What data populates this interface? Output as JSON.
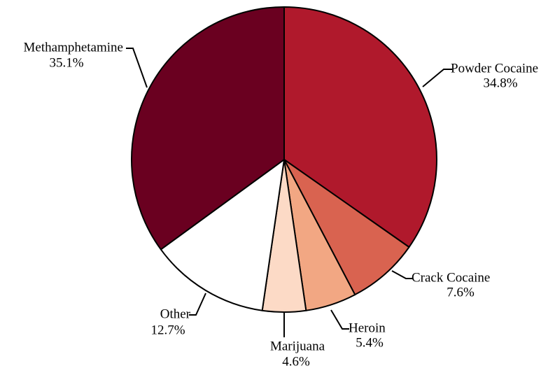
{
  "chart_data": {
    "type": "pie",
    "title": "",
    "start_angle_deg": 0,
    "direction": "clockwise",
    "legend": "none",
    "slices": [
      {
        "label": "Powder Cocaine",
        "value": 34.8,
        "value_label": "34.8%",
        "color": "#B0192C"
      },
      {
        "label": "Crack Cocaine",
        "value": 7.6,
        "value_label": "7.6%",
        "color": "#D96350"
      },
      {
        "label": "Heroin",
        "value": 5.4,
        "value_label": "5.4%",
        "color": "#F2A783"
      },
      {
        "label": "Marijuana",
        "value": 4.6,
        "value_label": "4.6%",
        "color": "#FCDAC6"
      },
      {
        "label": "Other",
        "value": 12.7,
        "value_label": "12.7%",
        "color": "#FFFFFF"
      },
      {
        "label": "Methamphetamine",
        "value": 35.1,
        "value_label": "35.1%",
        "color": "#6A0020"
      }
    ]
  }
}
